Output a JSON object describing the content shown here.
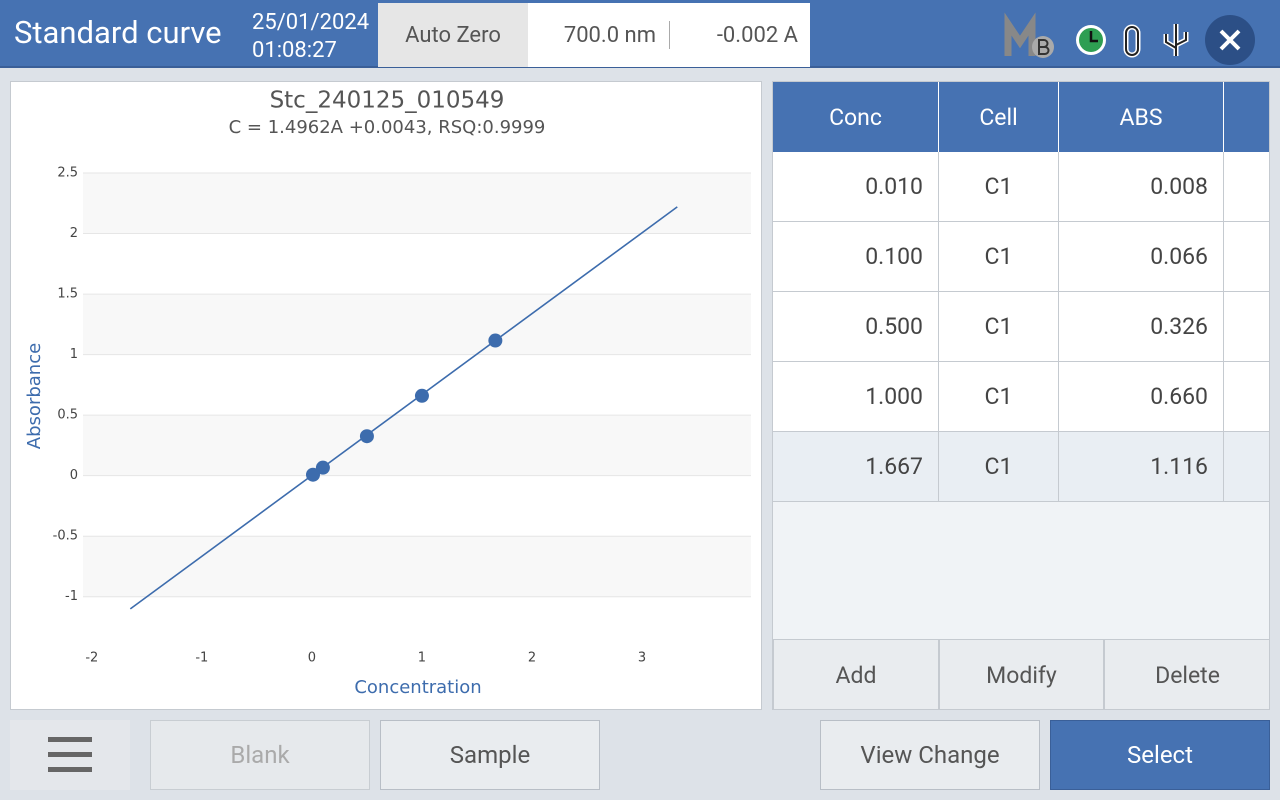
{
  "header": {
    "title": "Standard curve",
    "date": "25/01/2024",
    "time": "01:08:27",
    "auto_zero": "Auto Zero",
    "wavelength": "700.0 nm",
    "absorbance": "-0.002 A"
  },
  "chart_data": {
    "type": "scatter",
    "title": "Stc_240125_010549",
    "subtitle": "C = 1.4962A +0.0043, RSQ:0.9999",
    "x_label": "Concentration",
    "y_label": "Absorbance",
    "x": [
      0.01,
      0.1,
      0.5,
      1.0,
      1.667
    ],
    "values": [
      0.008,
      0.066,
      0.326,
      0.66,
      1.116
    ],
    "color": "#3d6cad",
    "fit_line": {
      "x": [
        -1.65,
        3.32
      ],
      "values": [
        -1.1,
        2.22
      ]
    },
    "xlim": [
      -2.08,
      3.99
    ],
    "ylim": [
      -1.25,
      2.5
    ],
    "xticks": [
      -2,
      -1,
      0,
      1,
      2,
      3
    ],
    "yticks": [
      -1,
      -0.5,
      0,
      0.5,
      1,
      1.5,
      2,
      2.5
    ],
    "grid": true
  },
  "table": {
    "columns": [
      "Conc",
      "Cell",
      "ABS"
    ],
    "rows": [
      [
        "0.010",
        "C1",
        "0.008"
      ],
      [
        "0.100",
        "C1",
        "0.066"
      ],
      [
        "0.500",
        "C1",
        "0.326"
      ],
      [
        "1.000",
        "C1",
        "0.660"
      ],
      [
        "1.667",
        "C1",
        "1.116"
      ]
    ]
  },
  "table_buttons": [
    "Add",
    "Modify",
    "Delete"
  ],
  "bottom_buttons": {
    "blank": "Blank",
    "sample": "Sample",
    "view_change": "View Change",
    "select": "Select"
  }
}
